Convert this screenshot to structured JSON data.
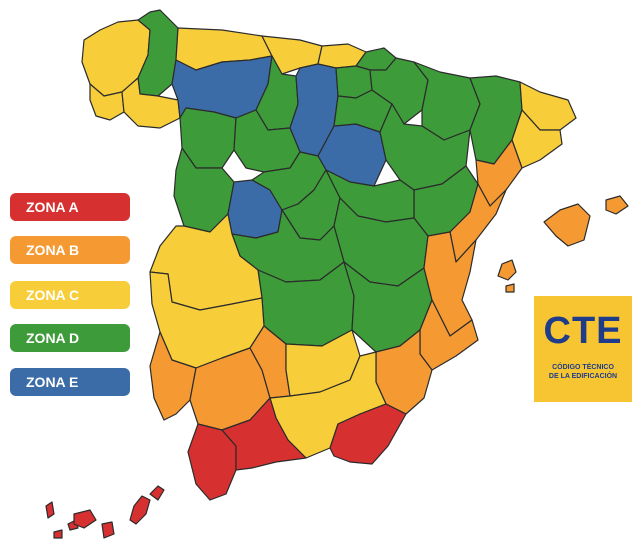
{
  "colors": {
    "zona_a": "#D63031",
    "zona_b": "#F59A33",
    "zona_c": "#F7CE3A",
    "zona_d": "#3E9B3A",
    "zona_e": "#3B6CA8",
    "border": "#2b2b2b"
  },
  "legend": [
    {
      "label": "ZONA A",
      "color": "#D63031"
    },
    {
      "label": "ZONA B",
      "color": "#F59A33"
    },
    {
      "label": "ZONA C",
      "color": "#F7CE3A"
    },
    {
      "label": "ZONA D",
      "color": "#3E9B3A"
    },
    {
      "label": "ZONA E",
      "color": "#3B6CA8"
    }
  ],
  "logo": {
    "title": "CTE",
    "subtitle_line1": "CÓDIGO TÉCNICO",
    "subtitle_line2": "DE LA EDIFICACIÓN",
    "background": "#F6C531",
    "text_color": "#1E3C89"
  },
  "regions": [
    {
      "name": "a-coruna",
      "zone": "C"
    },
    {
      "name": "lugo",
      "zone": "D"
    },
    {
      "name": "pontevedra",
      "zone": "C"
    },
    {
      "name": "ourense",
      "zone": "C"
    },
    {
      "name": "asturias",
      "zone": "C"
    },
    {
      "name": "cantabria",
      "zone": "C"
    },
    {
      "name": "bizkaia",
      "zone": "C"
    },
    {
      "name": "gipuzkoa",
      "zone": "D"
    },
    {
      "name": "leon",
      "zone": "E"
    },
    {
      "name": "burgos",
      "zone": "E"
    },
    {
      "name": "soria",
      "zone": "E"
    },
    {
      "name": "avila",
      "zone": "E"
    },
    {
      "name": "palencia",
      "zone": "D"
    },
    {
      "name": "zamora",
      "zone": "D"
    },
    {
      "name": "valladolid",
      "zone": "D"
    },
    {
      "name": "salamanca",
      "zone": "D"
    },
    {
      "name": "segovia",
      "zone": "D"
    },
    {
      "name": "madrid",
      "zone": "D"
    },
    {
      "name": "navarra",
      "zone": "D"
    },
    {
      "name": "la-rioja",
      "zone": "D"
    },
    {
      "name": "alava",
      "zone": "D"
    },
    {
      "name": "huesca",
      "zone": "D"
    },
    {
      "name": "zaragoza",
      "zone": "D"
    },
    {
      "name": "teruel",
      "zone": "D"
    },
    {
      "name": "guadalajara",
      "zone": "D"
    },
    {
      "name": "cuenca",
      "zone": "D"
    },
    {
      "name": "toledo",
      "zone": "D"
    },
    {
      "name": "ciudad-real",
      "zone": "D"
    },
    {
      "name": "albacete",
      "zone": "D"
    },
    {
      "name": "lleida",
      "zone": "D"
    },
    {
      "name": "girona",
      "zone": "C"
    },
    {
      "name": "barcelona",
      "zone": "C"
    },
    {
      "name": "tarragona",
      "zone": "B"
    },
    {
      "name": "castellon",
      "zone": "B"
    },
    {
      "name": "valencia",
      "zone": "B"
    },
    {
      "name": "alicante",
      "zone": "B"
    },
    {
      "name": "murcia",
      "zone": "B"
    },
    {
      "name": "caceres",
      "zone": "C"
    },
    {
      "name": "badajoz",
      "zone": "C"
    },
    {
      "name": "huelva",
      "zone": "B"
    },
    {
      "name": "sevilla",
      "zone": "B"
    },
    {
      "name": "cordoba",
      "zone": "B"
    },
    {
      "name": "jaen",
      "zone": "C"
    },
    {
      "name": "granada",
      "zone": "C"
    },
    {
      "name": "cadiz",
      "zone": "A"
    },
    {
      "name": "malaga",
      "zone": "A"
    },
    {
      "name": "almeria",
      "zone": "A"
    },
    {
      "name": "baleares",
      "zone": "B"
    },
    {
      "name": "canarias",
      "zone": "A"
    }
  ]
}
